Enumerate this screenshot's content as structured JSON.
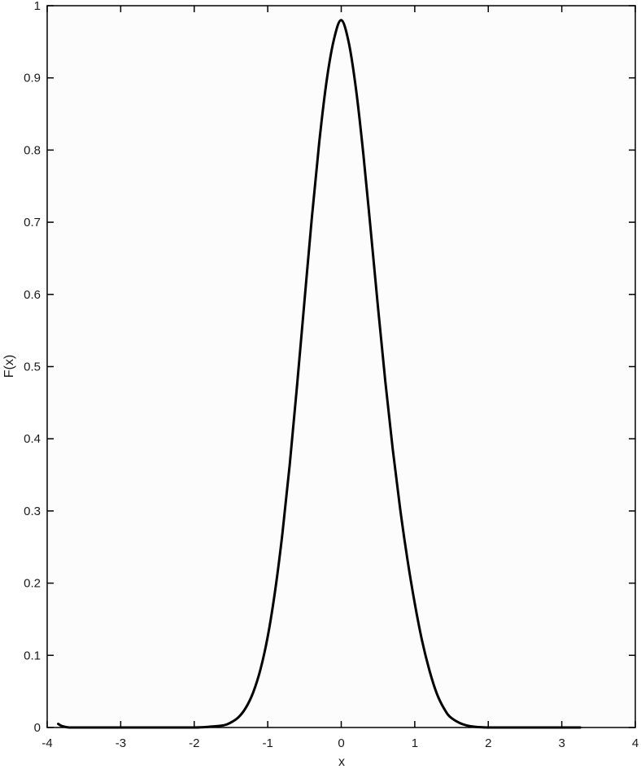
{
  "chart_data": {
    "type": "line",
    "title": "",
    "xlabel": "x",
    "ylabel": "F(x)",
    "xlim": [
      -4,
      4
    ],
    "ylim": [
      0,
      1
    ],
    "x_ticks": [
      -4,
      -3,
      -2,
      -1,
      0,
      1,
      2,
      3,
      4
    ],
    "y_ticks": [
      0,
      0.1,
      0.2,
      0.3,
      0.4,
      0.5,
      0.6,
      0.7,
      0.8,
      0.9,
      1
    ],
    "x_tick_labels": [
      "-4",
      "-3",
      "-2",
      "-1",
      "0",
      "1",
      "2",
      "3",
      "4"
    ],
    "y_tick_labels": [
      "0",
      "0.1",
      "0.2",
      "0.3",
      "0.4",
      "0.5",
      "0.6",
      "0.7",
      "0.8",
      "0.9",
      "1"
    ],
    "grid": false,
    "legend": "none",
    "series": [
      {
        "color": "#000000",
        "x": [
          -3.85,
          -3.8,
          -3.7,
          -3.5,
          -3.0,
          -2.5,
          -2.0,
          -1.8,
          -1.6,
          -1.5,
          -1.4,
          -1.3,
          -1.2,
          -1.1,
          -1.0,
          -0.9,
          -0.8,
          -0.7,
          -0.6,
          -0.5,
          -0.4,
          -0.3,
          -0.2,
          -0.1,
          0.0,
          0.1,
          0.2,
          0.3,
          0.4,
          0.5,
          0.6,
          0.7,
          0.8,
          0.9,
          1.0,
          1.1,
          1.2,
          1.3,
          1.4,
          1.5,
          1.7,
          2.0,
          2.5,
          3.0,
          3.25
        ],
        "y": [
          0.005,
          0.002,
          0.0,
          0.0,
          0.0,
          0.0,
          0.0,
          0.001,
          0.003,
          0.007,
          0.014,
          0.027,
          0.048,
          0.08,
          0.126,
          0.189,
          0.269,
          0.365,
          0.475,
          0.591,
          0.706,
          0.81,
          0.895,
          0.953,
          0.98,
          0.95,
          0.885,
          0.795,
          0.69,
          0.582,
          0.479,
          0.386,
          0.304,
          0.233,
          0.172,
          0.12,
          0.079,
          0.047,
          0.026,
          0.013,
          0.003,
          0.0,
          0.0,
          0.0,
          0.0
        ]
      }
    ]
  }
}
